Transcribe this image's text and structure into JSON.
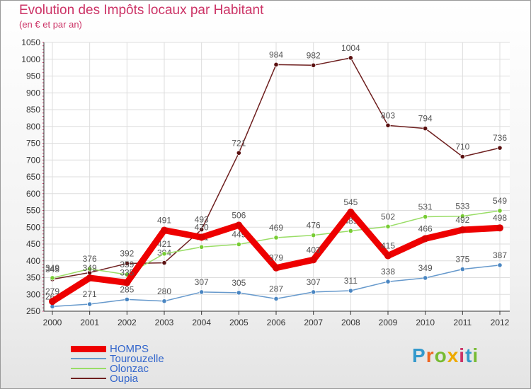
{
  "title": "Evolution des Impôts locaux par Habitant",
  "subtitle": "(en € et par an)",
  "logo_text": "Proxiti",
  "chart_data": {
    "type": "line",
    "title": "Evolution des Impôts locaux par Habitant",
    "ylabel": "(en € et par an)",
    "x": [
      "2000",
      "2001",
      "2002",
      "2003",
      "2004",
      "2005",
      "2006",
      "2007",
      "2008",
      "2009",
      "2010",
      "2011",
      "2012"
    ],
    "ylim": [
      250,
      1050
    ],
    "yticks": [
      250,
      300,
      350,
      400,
      450,
      500,
      550,
      600,
      650,
      700,
      750,
      800,
      850,
      900,
      950,
      1000,
      1050
    ],
    "legend_position": "bottom-left",
    "series": [
      {
        "name": "Oupia",
        "color": "#6e1f1f",
        "marker": "#5a1010",
        "values": [
          345,
          365,
          392,
          394,
          493,
          721,
          984,
          982,
          1004,
          803,
          794,
          710,
          736
        ],
        "labels": [
          "345",
          "",
          "392",
          "394",
          "493",
          "721",
          "984",
          "982",
          "1004",
          "803",
          "794",
          "710",
          "736"
        ]
      },
      {
        "name": "Olonzac",
        "color": "#99dd66",
        "marker": "#77cc33",
        "values": [
          349,
          376,
          359,
          421,
          441,
          449,
          469,
          476,
          489,
          502,
          531,
          533,
          549
        ],
        "labels": [
          "349",
          "376",
          "359",
          "421",
          "441",
          "449",
          "469",
          "476",
          "489",
          "502",
          "531",
          "533",
          "549"
        ]
      },
      {
        "name": "Tourouzelle",
        "color": "#6699cc",
        "marker": "#4a86c2",
        "values": [
          264,
          271,
          285,
          280,
          307,
          305,
          287,
          307,
          311,
          338,
          349,
          375,
          387
        ],
        "labels": [
          "264",
          "271",
          "285",
          "280",
          "307",
          "305",
          "287",
          "307",
          "311",
          "338",
          "349",
          "375",
          "387"
        ]
      },
      {
        "name": "HOMPS",
        "color": "#ee0000",
        "marker": "#dd0000",
        "values": [
          279,
          349,
          335,
          491,
          470,
          506,
          379,
          403,
          545,
          415,
          466,
          492,
          498
        ],
        "labels": [
          "279",
          "349",
          "335",
          "491",
          "470",
          "506",
          "379",
          "403",
          "545",
          "415",
          "466",
          "492",
          "498"
        ]
      }
    ]
  },
  "legend": [
    {
      "name": "HOMPS",
      "color": "#ee0000"
    },
    {
      "name": "Tourouzelle",
      "color": "#6699cc"
    },
    {
      "name": "Olonzac",
      "color": "#99dd66"
    },
    {
      "name": "Oupia",
      "color": "#6e1f1f"
    }
  ]
}
